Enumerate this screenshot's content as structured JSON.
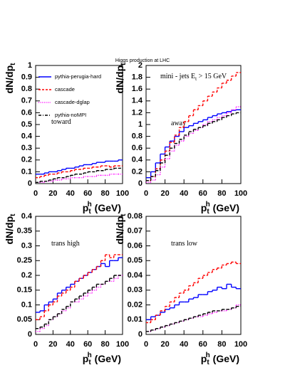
{
  "title": "Higgs production at LHC",
  "chart_data": [
    {
      "type": "histogram",
      "xlabel": [
        "p",
        "t",
        "h",
        " (GeV)"
      ],
      "ylabel": [
        "dN/dp",
        "t"
      ],
      "annotations": [
        [
          "toward"
        ]
      ],
      "legend": "upper left",
      "bins": [
        0,
        5,
        10,
        15,
        20,
        25,
        30,
        35,
        40,
        45,
        50,
        55,
        60,
        65,
        70,
        75,
        80,
        85,
        90,
        95,
        100
      ],
      "xlim": [
        0,
        100
      ],
      "xticks": [
        0,
        20,
        40,
        60,
        80,
        100
      ],
      "ylim": [
        0,
        1
      ],
      "yticks": [
        0,
        0.1,
        0.2,
        0.3,
        0.4,
        0.5,
        0.6,
        0.7,
        0.8,
        0.9,
        1
      ],
      "series": [
        {
          "name": "pythia-perugia-hard",
          "color": "#0000ff",
          "linestyle": "solid",
          "values": [
            0.08,
            0.08,
            0.09,
            0.1,
            0.1,
            0.11,
            0.12,
            0.13,
            0.13,
            0.14,
            0.15,
            0.16,
            0.16,
            0.17,
            0.18,
            0.18,
            0.19,
            0.19,
            0.19,
            0.2
          ]
        },
        {
          "name": "cascade",
          "color": "#ff0000",
          "linestyle": "dashed",
          "values": [
            0.05,
            0.06,
            0.07,
            0.08,
            0.08,
            0.09,
            0.1,
            0.1,
            0.11,
            0.12,
            0.12,
            0.13,
            0.13,
            0.14,
            0.14,
            0.15,
            0.15,
            0.14,
            0.15,
            0.15
          ]
        },
        {
          "name": "cascade-dglap",
          "color": "#ff00ff",
          "linestyle": "dotted",
          "values": [
            0.01,
            0.01,
            0.02,
            0.02,
            0.03,
            0.03,
            0.04,
            0.04,
            0.05,
            0.05,
            0.05,
            0.06,
            0.06,
            0.06,
            0.07,
            0.07,
            0.07,
            0.08,
            0.08,
            0.08
          ]
        },
        {
          "name": "pythia-noMPI",
          "color": "#000000",
          "linestyle": "dashdot",
          "values": [
            0.01,
            0.02,
            0.02,
            0.03,
            0.04,
            0.05,
            0.05,
            0.06,
            0.07,
            0.08,
            0.08,
            0.09,
            0.1,
            0.1,
            0.11,
            0.11,
            0.12,
            0.12,
            0.13,
            0.13
          ]
        }
      ]
    },
    {
      "type": "histogram",
      "xlabel": [
        "p",
        "t",
        "h",
        " (GeV)"
      ],
      "ylabel": [
        "dN/dp",
        "t"
      ],
      "annotations": [
        [
          "mini - jets E",
          "t",
          " > 15 GeV"
        ],
        [
          "away"
        ]
      ],
      "bins": [
        0,
        5,
        10,
        15,
        20,
        25,
        30,
        35,
        40,
        45,
        50,
        55,
        60,
        65,
        70,
        75,
        80,
        85,
        90,
        95,
        100
      ],
      "xlim": [
        0,
        100
      ],
      "xticks": [
        0,
        20,
        40,
        60,
        80,
        100
      ],
      "ylim": [
        0,
        2
      ],
      "yticks": [
        0,
        0.2,
        0.4,
        0.6,
        0.8,
        1,
        1.2,
        1.4,
        1.6,
        1.8,
        2
      ],
      "series": [
        {
          "color": "#0000ff",
          "linestyle": "solid",
          "values": [
            0.1,
            0.2,
            0.35,
            0.5,
            0.62,
            0.72,
            0.8,
            0.88,
            0.95,
            0.98,
            1.02,
            1.05,
            1.08,
            1.12,
            1.15,
            1.18,
            1.2,
            1.22,
            1.24,
            1.25
          ]
        },
        {
          "color": "#ff0000",
          "linestyle": "dashed",
          "values": [
            0.05,
            0.12,
            0.25,
            0.4,
            0.55,
            0.7,
            0.82,
            0.95,
            1.05,
            1.15,
            1.25,
            1.32,
            1.4,
            1.48,
            1.55,
            1.62,
            1.7,
            1.75,
            1.82,
            1.88
          ]
        },
        {
          "color": "#ff00ff",
          "linestyle": "dotted",
          "values": [
            0.02,
            0.06,
            0.15,
            0.28,
            0.42,
            0.55,
            0.65,
            0.72,
            0.8,
            0.85,
            0.9,
            0.95,
            1.0,
            1.05,
            1.08,
            1.12,
            1.15,
            1.2,
            1.25,
            1.3
          ]
        },
        {
          "color": "#000000",
          "linestyle": "dashdot",
          "values": [
            0.05,
            0.12,
            0.22,
            0.35,
            0.48,
            0.6,
            0.68,
            0.75,
            0.82,
            0.88,
            0.92,
            0.95,
            0.98,
            1.02,
            1.05,
            1.08,
            1.12,
            1.15,
            1.18,
            1.2
          ]
        }
      ]
    },
    {
      "type": "histogram",
      "xlabel": [
        "p",
        "t",
        "h",
        " (GeV)"
      ],
      "ylabel": [
        "dN/dp",
        "t"
      ],
      "annotations": [
        [
          "trans high"
        ]
      ],
      "bins": [
        0,
        5,
        10,
        15,
        20,
        25,
        30,
        35,
        40,
        45,
        50,
        55,
        60,
        65,
        70,
        75,
        80,
        85,
        90,
        95,
        100
      ],
      "xlim": [
        0,
        100
      ],
      "xticks": [
        0,
        20,
        40,
        60,
        80,
        100
      ],
      "ylim": [
        0,
        0.4
      ],
      "yticks": [
        0,
        0.05,
        0.1,
        0.15,
        0.2,
        0.25,
        0.3,
        0.35,
        0.4
      ],
      "series": [
        {
          "color": "#0000ff",
          "linestyle": "solid",
          "values": [
            0.075,
            0.08,
            0.1,
            0.11,
            0.12,
            0.14,
            0.15,
            0.16,
            0.17,
            0.18,
            0.19,
            0.2,
            0.21,
            0.22,
            0.23,
            0.24,
            0.23,
            0.25,
            0.25,
            0.26
          ]
        },
        {
          "color": "#ff0000",
          "linestyle": "dashed",
          "values": [
            0.05,
            0.06,
            0.08,
            0.1,
            0.11,
            0.13,
            0.14,
            0.15,
            0.16,
            0.18,
            0.19,
            0.2,
            0.21,
            0.22,
            0.23,
            0.25,
            0.27,
            0.26,
            0.27,
            0.27
          ]
        },
        {
          "color": "#ff00ff",
          "linestyle": "dotted",
          "values": [
            0.01,
            0.02,
            0.03,
            0.05,
            0.06,
            0.07,
            0.08,
            0.09,
            0.11,
            0.11,
            0.12,
            0.13,
            0.14,
            0.15,
            0.16,
            0.17,
            0.18,
            0.18,
            0.19,
            0.2
          ]
        },
        {
          "color": "#000000",
          "linestyle": "dashdot",
          "values": [
            0.02,
            0.025,
            0.035,
            0.05,
            0.06,
            0.07,
            0.085,
            0.095,
            0.11,
            0.12,
            0.13,
            0.14,
            0.15,
            0.16,
            0.17,
            0.17,
            0.18,
            0.19,
            0.2,
            0.2
          ]
        }
      ]
    },
    {
      "type": "histogram",
      "xlabel": [
        "p",
        "t",
        "h",
        " (GeV)"
      ],
      "ylabel": [
        "dN/dp",
        "t"
      ],
      "annotations": [
        [
          "trans low"
        ]
      ],
      "bins": [
        0,
        5,
        10,
        15,
        20,
        25,
        30,
        35,
        40,
        45,
        50,
        55,
        60,
        65,
        70,
        75,
        80,
        85,
        90,
        95,
        100
      ],
      "xlim": [
        0,
        100
      ],
      "xticks": [
        0,
        20,
        40,
        60,
        80,
        100
      ],
      "ylim": [
        0,
        0.08
      ],
      "yticks": [
        0,
        0.01,
        0.02,
        0.03,
        0.04,
        0.05,
        0.06,
        0.07,
        0.08
      ],
      "series": [
        {
          "color": "#0000ff",
          "linestyle": "solid",
          "values": [
            0.01,
            0.012,
            0.013,
            0.015,
            0.017,
            0.018,
            0.02,
            0.022,
            0.022,
            0.024,
            0.025,
            0.027,
            0.027,
            0.029,
            0.03,
            0.032,
            0.031,
            0.034,
            0.032,
            0.031
          ]
        },
        {
          "color": "#ff0000",
          "linestyle": "dashed",
          "values": [
            0.008,
            0.01,
            0.013,
            0.016,
            0.019,
            0.022,
            0.025,
            0.028,
            0.03,
            0.033,
            0.035,
            0.038,
            0.04,
            0.042,
            0.044,
            0.045,
            0.047,
            0.048,
            0.049,
            0.048
          ]
        },
        {
          "color": "#ff00ff",
          "linestyle": "dotted",
          "values": [
            0.002,
            0.003,
            0.004,
            0.005,
            0.006,
            0.007,
            0.008,
            0.009,
            0.01,
            0.011,
            0.012,
            0.012,
            0.013,
            0.014,
            0.015,
            0.016,
            0.016,
            0.017,
            0.018,
            0.02
          ]
        },
        {
          "color": "#000000",
          "linestyle": "dashdot",
          "values": [
            0.002,
            0.003,
            0.004,
            0.005,
            0.006,
            0.007,
            0.008,
            0.009,
            0.01,
            0.011,
            0.012,
            0.013,
            0.014,
            0.015,
            0.016,
            0.016,
            0.017,
            0.017,
            0.018,
            0.019
          ]
        }
      ]
    }
  ]
}
